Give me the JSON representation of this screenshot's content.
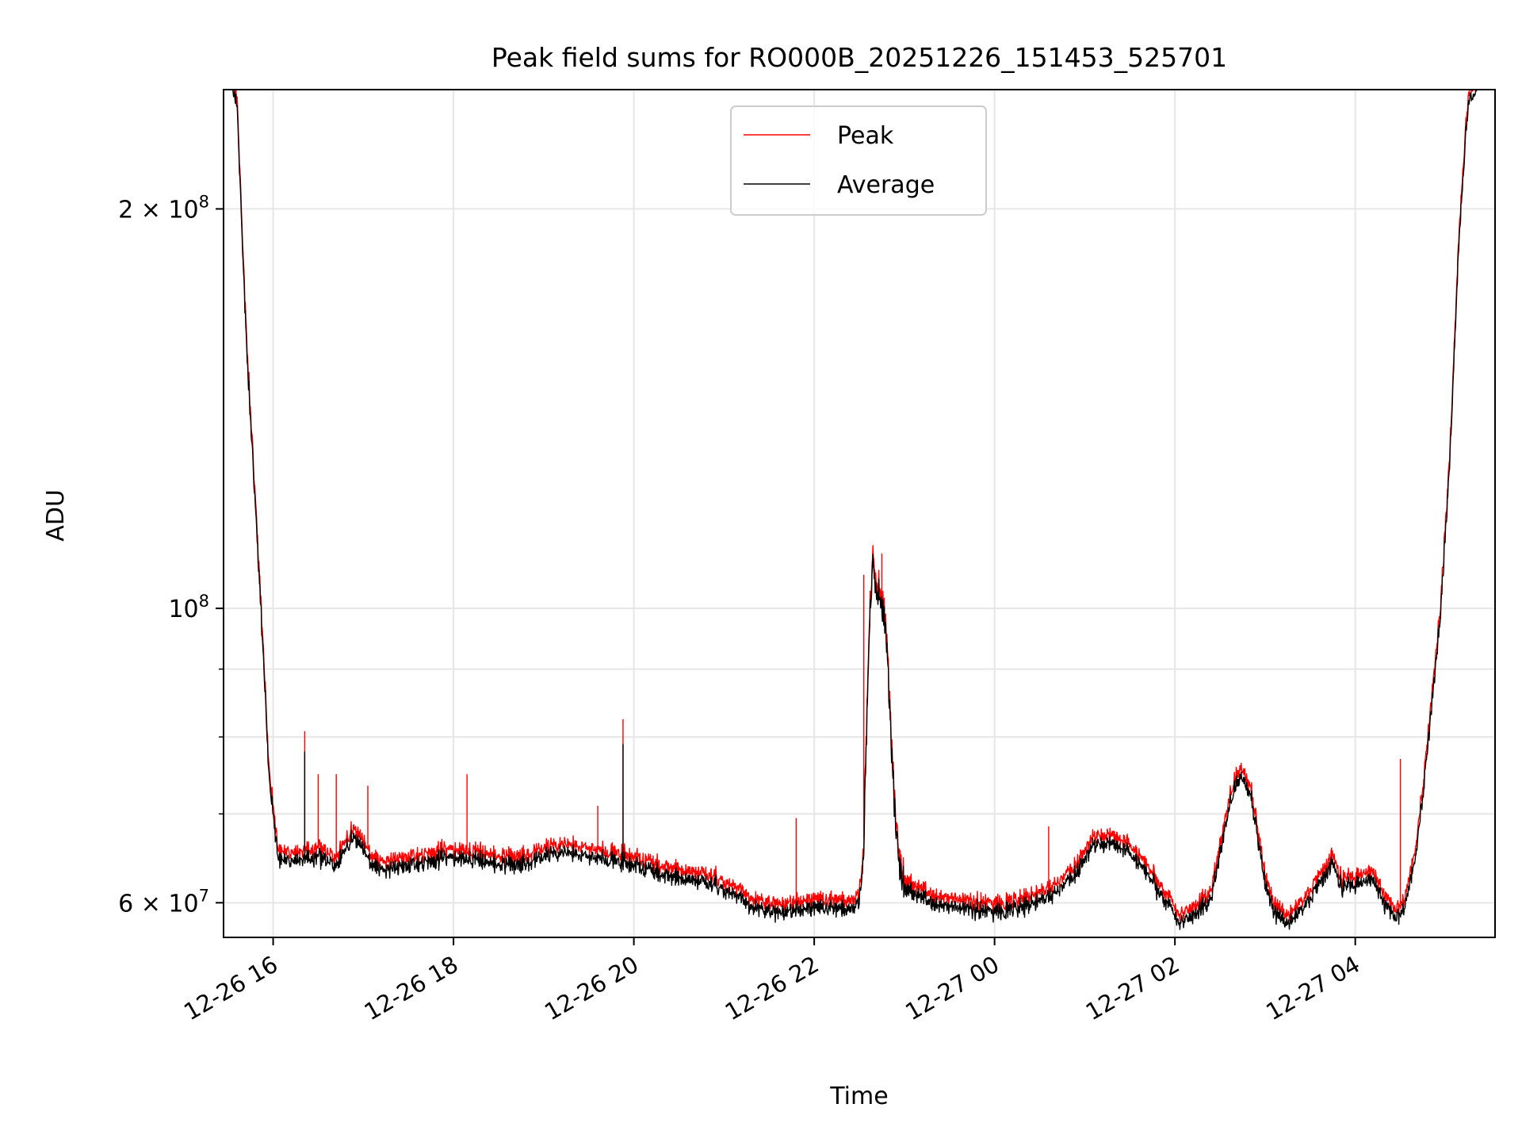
{
  "chart_data": {
    "type": "line",
    "title": "Peak field sums for RO000B_20251226_151453_525701",
    "xlabel": "Time",
    "ylabel": "ADU",
    "yscale": "log",
    "grid": true,
    "legend_position": "top-center",
    "x_range_hours": [
      15.45,
      29.55
    ],
    "ylim": [
      56500000,
      246000000
    ],
    "x_ticks": [
      {
        "hour": 16,
        "label": "12-26 16"
      },
      {
        "hour": 18,
        "label": "12-26 18"
      },
      {
        "hour": 20,
        "label": "12-26 20"
      },
      {
        "hour": 22,
        "label": "12-26 22"
      },
      {
        "hour": 24,
        "label": "12-27 00"
      },
      {
        "hour": 26,
        "label": "12-27 02"
      },
      {
        "hour": 28,
        "label": "12-27 04"
      }
    ],
    "y_major_ticks": [
      {
        "value": 60000000,
        "mantissa": "6",
        "times": "×",
        "base": "10",
        "exp": "7"
      },
      {
        "value": 100000000,
        "mantissa": "",
        "times": "",
        "base": "10",
        "exp": "8"
      },
      {
        "value": 200000000,
        "mantissa": "2",
        "times": "×",
        "base": "10",
        "exp": "8"
      }
    ],
    "y_minor_ticks": [
      70000000,
      80000000,
      90000000,
      300000000
    ],
    "series": [
      {
        "name": "Peak",
        "color": "#ff0000",
        "offset_factor": 1.015,
        "spikes": [
          [
            16.35,
            80800000
          ],
          [
            16.5,
            75000000
          ],
          [
            16.7,
            75000000
          ],
          [
            17.05,
            73500000
          ],
          [
            18.15,
            75000000
          ],
          [
            19.6,
            71000000
          ],
          [
            19.88,
            82500000
          ],
          [
            21.8,
            69500000
          ],
          [
            22.55,
            106000000
          ],
          [
            22.75,
            110000000
          ],
          [
            24.6,
            68500000
          ],
          [
            28.5,
            77000000
          ]
        ]
      },
      {
        "name": "Average",
        "color": "#000000",
        "offset_factor": 1.0,
        "spikes": [
          [
            16.35,
            78000000
          ],
          [
            19.88,
            79000000
          ]
        ]
      }
    ],
    "baseline": {
      "x": [
        15.45,
        15.55,
        15.6,
        15.7,
        15.8,
        15.9,
        15.95,
        16.05,
        16.2,
        16.5,
        16.7,
        16.9,
        17.1,
        17.3,
        17.5,
        17.7,
        18.0,
        18.3,
        18.6,
        18.9,
        19.2,
        19.5,
        19.8,
        20.0,
        20.3,
        20.6,
        20.9,
        21.1,
        21.3,
        21.6,
        21.9,
        22.2,
        22.4,
        22.5,
        22.55,
        22.6,
        22.65,
        22.7,
        22.75,
        22.8,
        22.85,
        22.9,
        22.95,
        23.0,
        23.1,
        23.3,
        23.6,
        24.0,
        24.3,
        24.6,
        24.9,
        25.1,
        25.3,
        25.5,
        25.7,
        25.9,
        26.05,
        26.2,
        26.4,
        26.55,
        26.65,
        26.75,
        26.85,
        27.0,
        27.1,
        27.25,
        27.45,
        27.6,
        27.75,
        27.85,
        28.0,
        28.2,
        28.35,
        28.45,
        28.55,
        28.65,
        28.75,
        28.85,
        28.95,
        29.05,
        29.15,
        29.25,
        29.35,
        29.55
      ],
      "y": [
        246000000,
        246000000,
        240000000,
        160000000,
        120000000,
        90000000,
        75000000,
        65000000,
        64500000,
        65000000,
        64000000,
        67500000,
        64000000,
        63500000,
        64000000,
        64500000,
        65000000,
        64500000,
        64000000,
        64500000,
        65500000,
        65000000,
        64500000,
        64000000,
        63000000,
        62500000,
        62000000,
        61000000,
        59500000,
        59000000,
        59500000,
        59500000,
        59500000,
        60000000,
        66000000,
        92000000,
        108000000,
        102000000,
        101000000,
        95000000,
        80000000,
        70000000,
        63000000,
        62000000,
        61000000,
        60000000,
        59500000,
        59000000,
        59500000,
        60500000,
        63000000,
        66500000,
        66500000,
        65500000,
        63000000,
        60000000,
        58000000,
        58500000,
        60500000,
        68000000,
        73000000,
        74500000,
        72000000,
        62000000,
        59000000,
        58000000,
        59500000,
        62000000,
        64500000,
        61500000,
        62000000,
        62500000,
        59500000,
        58500000,
        59500000,
        64000000,
        72000000,
        85000000,
        100000000,
        130000000,
        190000000,
        240000000,
        246000000,
        246000000
      ]
    },
    "seed": 20251226
  }
}
